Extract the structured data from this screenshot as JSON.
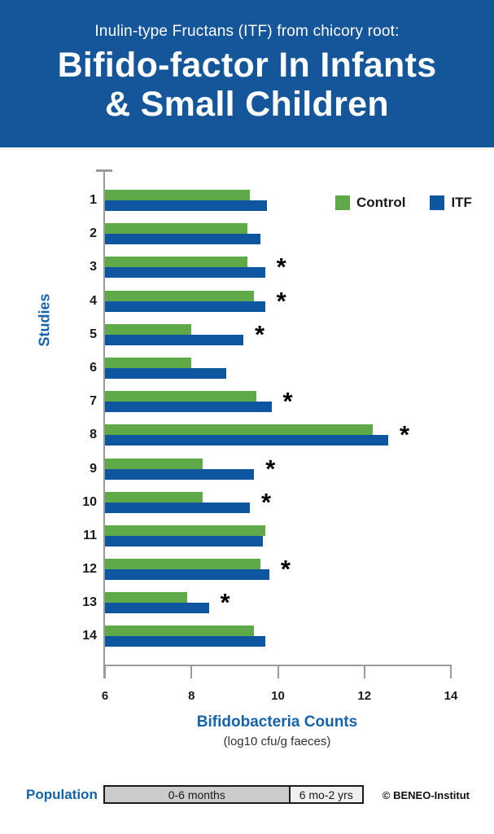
{
  "header": {
    "subtitle": "Inulin-type Fructans (ITF) from chicory root:",
    "title_line1": "Bifido-factor In Infants",
    "title_line2": "& Small Children"
  },
  "colors": {
    "header_bg": "#15569B",
    "label_blue": "#1563AC",
    "control_green": "#5FA948",
    "itf_blue": "#0E56A0",
    "axis_gray": "#9B9B9B",
    "population_seg1_bg": "#CBCBCB",
    "population_seg2_bg": "#EFEFEF"
  },
  "chart_data": {
    "type": "bar",
    "orientation": "horizontal",
    "ylabel": "Studies",
    "xlabel": "Bifidobacteria Counts",
    "xlabel_sub": "(log10 cfu/g faeces)",
    "xlim": [
      6,
      14
    ],
    "xticks": [
      6,
      8,
      10,
      12,
      14
    ],
    "grid": false,
    "legend_position": "top-right",
    "categories": [
      "1",
      "2",
      "3",
      "4",
      "5",
      "6",
      "7",
      "8",
      "9",
      "10",
      "11",
      "12",
      "13",
      "14"
    ],
    "series": [
      {
        "name": "Control",
        "color": "#5FA948",
        "values": [
          9.35,
          9.3,
          9.3,
          9.45,
          8.0,
          8.0,
          9.5,
          12.2,
          8.25,
          8.25,
          9.7,
          9.6,
          7.9,
          9.45
        ]
      },
      {
        "name": "ITF",
        "color": "#0E56A0",
        "values": [
          9.75,
          9.6,
          9.7,
          9.7,
          9.2,
          8.8,
          9.85,
          12.55,
          9.45,
          9.35,
          9.65,
          9.8,
          8.4,
          9.7
        ]
      }
    ],
    "significant": [
      false,
      false,
      true,
      true,
      true,
      false,
      true,
      true,
      true,
      true,
      false,
      true,
      true,
      false
    ],
    "significance_marker": "*"
  },
  "population": {
    "label": "Population",
    "segments": [
      {
        "label": "0-6 months",
        "width_pct": 72
      },
      {
        "label": "6 mo-2 yrs",
        "width_pct": 28
      }
    ]
  },
  "copyright": "© BENEO-Institut"
}
